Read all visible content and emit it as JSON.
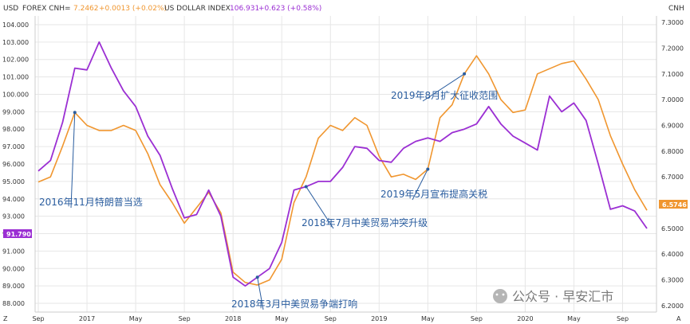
{
  "header": {
    "left_axis_label": "USD",
    "right_axis_label": "CNH",
    "series1_name": "FOREX CNH=",
    "series1_value": "7.2462",
    "series1_change": "+0.0013 (+0.02%)",
    "series2_name": "US DOLLAR INDEX",
    "series2_value": "106.931",
    "series2_change": "+0.623 (+0.58%)"
  },
  "colors": {
    "usd": "#9b2fd3",
    "cnh": "#f0962f",
    "annotation": "#2a5d9f",
    "grid": "#e6e6e6"
  },
  "footer": {
    "z_label": "Z",
    "a_label": "A"
  },
  "watermark": "公众号 · 早安汇市",
  "chart_data": {
    "type": "line",
    "x_ticks": [
      "Sep",
      "2017",
      "May",
      "Sep",
      "2018",
      "May",
      "Sep",
      "2019",
      "May",
      "Sep",
      "2020",
      "May",
      "Sep"
    ],
    "x_tick_index": [
      0,
      4,
      8,
      12,
      16,
      20,
      24,
      28,
      32,
      36,
      40,
      44,
      48
    ],
    "y_left_ticks": [
      "88.000",
      "89.000",
      "90.000",
      "91.000",
      "92.000",
      "93.000",
      "94.000",
      "95.000",
      "96.000",
      "97.000",
      "98.000",
      "99.000",
      "100.000",
      "101.000",
      "102.000",
      "103.000",
      "104.000"
    ],
    "y_right_ticks": [
      "6.2000",
      "6.3000",
      "6.4000",
      "6.5000",
      "6.6000",
      "6.7000",
      "6.8000",
      "6.9000",
      "7.0000",
      "7.1000",
      "7.2000",
      "7.3000"
    ],
    "ylim_left": [
      87.5,
      104.5
    ],
    "ylim_right": [
      6.175,
      7.325
    ],
    "series": [
      {
        "name": "US DOLLAR INDEX",
        "axis": "left",
        "values": [
          95.6,
          96.2,
          98.4,
          101.5,
          101.4,
          103.0,
          101.5,
          100.2,
          99.3,
          97.6,
          96.5,
          94.6,
          92.9,
          93.1,
          94.5,
          93.0,
          89.5,
          89.0,
          89.5,
          90.0,
          91.5,
          94.5,
          94.7,
          95.0,
          95.0,
          95.8,
          97.0,
          96.9,
          96.2,
          96.1,
          96.9,
          97.3,
          97.5,
          97.3,
          97.8,
          98.0,
          98.3,
          99.3,
          98.3,
          97.6,
          97.2,
          96.8,
          99.9,
          99.0,
          99.5,
          98.5,
          96.0,
          93.4,
          93.6,
          93.3,
          92.3
        ]
      },
      {
        "name": "FOREX CNH=",
        "axis": "right",
        "values": [
          6.68,
          6.7,
          6.82,
          6.95,
          6.9,
          6.88,
          6.88,
          6.9,
          6.88,
          6.79,
          6.67,
          6.6,
          6.52,
          6.58,
          6.64,
          6.56,
          6.33,
          6.29,
          6.28,
          6.3,
          6.38,
          6.6,
          6.7,
          6.85,
          6.9,
          6.88,
          6.93,
          6.9,
          6.78,
          6.7,
          6.71,
          6.69,
          6.73,
          6.93,
          6.98,
          7.1,
          7.17,
          7.1,
          7.0,
          6.95,
          6.96,
          7.1,
          7.12,
          7.14,
          7.15,
          7.08,
          7.0,
          6.86,
          6.75,
          6.65,
          6.57
        ]
      }
    ],
    "current_values": {
      "usd": "91.790",
      "cnh": "6.5746"
    },
    "annotations": [
      {
        "text": "2016年11月特朗普当选",
        "x_index": 3,
        "series": "cnh"
      },
      {
        "text": "2018年3月中美贸易争端打响",
        "x_index": 18,
        "series": "usd"
      },
      {
        "text": "2018年7月中美贸易冲突升级",
        "x_index": 22,
        "series": "usd"
      },
      {
        "text": "2019年5月宣布提高关税",
        "x_index": 32,
        "series": "cnh"
      },
      {
        "text": "2019年8月扩大征收范围",
        "x_index": 35,
        "series": "cnh"
      }
    ]
  }
}
